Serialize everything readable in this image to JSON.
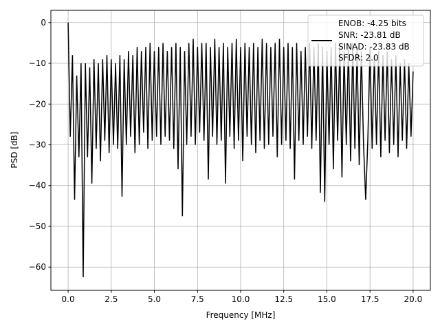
{
  "chart_data": {
    "type": "line",
    "title": "",
    "xlabel": "Frequency [MHz]",
    "ylabel": "PSD [dB]",
    "xlim": [
      -1,
      21
    ],
    "ylim": [
      -65.7,
      3
    ],
    "grid": true,
    "legend_placement": "upper-right",
    "line_color": "#000000",
    "x_ticks": [
      "0.0",
      "2.5",
      "5.0",
      "7.5",
      "10.0",
      "12.5",
      "15.0",
      "17.5",
      "20.0"
    ],
    "x_tick_values": [
      0,
      2.5,
      5,
      7.5,
      10,
      12.5,
      15,
      17.5,
      20
    ],
    "y_ticks": [
      "0",
      "−10",
      "−20",
      "−30",
      "−40",
      "−50",
      "−60"
    ],
    "y_tick_values": [
      0,
      -10,
      -20,
      -30,
      -40,
      -50,
      -60
    ],
    "legend": [
      "ENOB: -4.25 bits",
      "SNR: -23.81 dB",
      "SINAD: -23.83 dB",
      "SFDR: 2.0"
    ],
    "series": [
      {
        "x_range": [
          0,
          20
        ],
        "values": [
          0,
          -28,
          -8,
          -43.5,
          -13,
          -33,
          -10,
          -62.5,
          -10,
          -33,
          -11,
          -39.5,
          -9,
          -31,
          -10,
          -34,
          -9,
          -29,
          -8,
          -32,
          -9,
          -30,
          -10,
          -31,
          -8,
          -42.7,
          -9,
          -30,
          -7,
          -28,
          -8,
          -32,
          -6,
          -30,
          -7,
          -27,
          -6,
          -31,
          -5,
          -29,
          -7,
          -28,
          -6,
          -30,
          -5,
          -28,
          -7,
          -29,
          -6,
          -31,
          -5,
          -36,
          -6,
          -47.5,
          -7,
          -30,
          -5,
          -28,
          -4,
          -30,
          -6,
          -27,
          -5,
          -29,
          -5,
          -38.5,
          -6,
          -28,
          -4,
          -30,
          -6,
          -29,
          -5,
          -39.5,
          -6,
          -28,
          -5,
          -31,
          -4,
          -29,
          -6,
          -34,
          -5,
          -28,
          -6,
          -30,
          -5,
          -32,
          -6,
          -29,
          -4,
          -31,
          -5,
          -30,
          -6,
          -28,
          -5,
          -33,
          -4,
          -30,
          -6,
          -29,
          -5,
          -31,
          -6,
          -38.5,
          -5,
          -29,
          -7,
          -30,
          -6,
          -28,
          -5,
          -31,
          -6,
          -29,
          -5,
          -41.8,
          -6,
          -44,
          -7,
          -30,
          -6,
          -36,
          -5,
          -29,
          -6,
          -38,
          -7,
          -30,
          -6,
          -34,
          -5,
          -31,
          -6,
          -35,
          -7,
          -30,
          -43.5,
          -29,
          -6,
          -31,
          -8,
          -30,
          -7,
          -33,
          -8,
          -29,
          -7,
          -32,
          -9,
          -30,
          -8,
          -33,
          -10,
          -29,
          -9,
          -31,
          -10,
          -28,
          -12
        ]
      }
    ]
  }
}
